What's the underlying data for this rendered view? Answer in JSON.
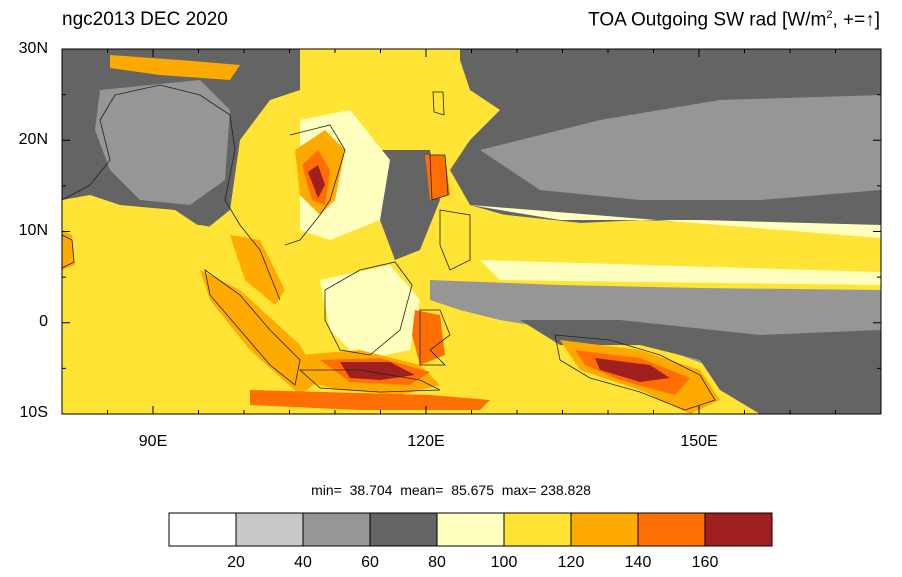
{
  "title_left": "ngc2013 DEC 2020",
  "title_right": {
    "prefix": "TOA Outgoing SW rad [W/m",
    "sup": "2",
    "suffix": ", +=",
    "arrow": "↑",
    "close": "]"
  },
  "axes": {
    "lat_ticks": [
      {
        "value": 30,
        "label": "30N"
      },
      {
        "value": 20,
        "label": "20N"
      },
      {
        "value": 10,
        "label": "10N"
      },
      {
        "value": 0,
        "label": "0"
      },
      {
        "value": -10,
        "label": "10S"
      }
    ],
    "lon_ticks": [
      {
        "value": 90,
        "label": "90E"
      },
      {
        "value": 120,
        "label": "120E"
      },
      {
        "value": 150,
        "label": "150E"
      }
    ],
    "lon_range": [
      80,
      170
    ],
    "lat_range": [
      -10,
      30
    ],
    "minor_tick_lon_step": 5,
    "minor_tick_lat_step": 5
  },
  "stats": {
    "min_label": "min=",
    "min_value": "38.704",
    "mean_label": "mean=",
    "mean_value": "85.675",
    "max_label": "max=",
    "max_value": "238.828"
  },
  "colorbar": {
    "labels": [
      "20",
      "40",
      "60",
      "80",
      "100",
      "120",
      "140",
      "160"
    ],
    "colors": [
      "#ffffff",
      "#c8c8c8",
      "#969696",
      "#646464",
      "#ffffc0",
      "#ffe335",
      "#ffaa00",
      "#ff6e00",
      "#a02020"
    ]
  },
  "map_colors": {
    "ocean_gray_dark": "#646464",
    "ocean_gray_mid": "#969696",
    "light_yellow": "#ffffc0",
    "yellow": "#ffe335",
    "orange": "#ffaa00",
    "dark_orange": "#ff6e00",
    "dark_red": "#a02020"
  }
}
